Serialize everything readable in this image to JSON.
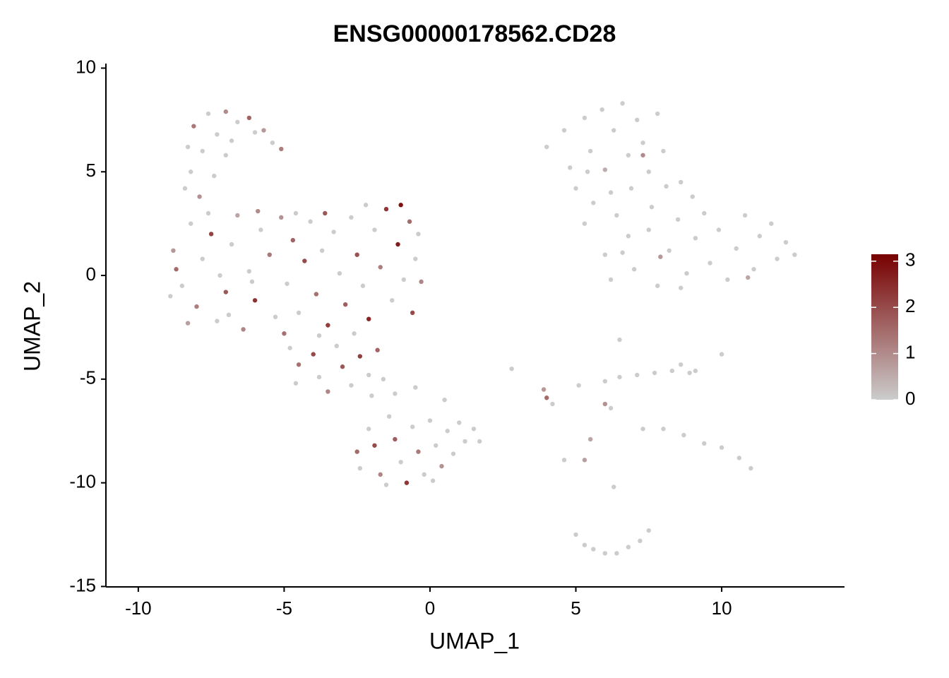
{
  "chart_data": {
    "type": "scatter",
    "title": "ENSG00000178562.CD28",
    "xlabel": "UMAP_1",
    "ylabel": "UMAP_2",
    "xlim": [
      -11.11,
      14.21
    ],
    "ylim": [
      -15.02,
      10.22
    ],
    "xticks": [
      -10,
      -5,
      0,
      5,
      10
    ],
    "yticks": [
      10,
      5,
      0,
      -5,
      -10,
      -15
    ],
    "color_low": "#cccccc",
    "color_high": "#780000",
    "color_lim": [
      0,
      3.15
    ],
    "color_ticks": [
      3,
      2,
      1,
      0
    ],
    "x": [
      -8.8,
      -8.5,
      -8.7,
      -8.2,
      -8.0,
      -7.8,
      -7.5,
      -7.3,
      -7.0,
      -6.8,
      -6.6,
      -6.4,
      -6.2,
      -6.0,
      -5.8,
      -5.5,
      -5.3,
      -5.1,
      -4.9,
      -4.7,
      -4.5,
      -4.3,
      -4.1,
      -3.9,
      -3.7,
      -3.5,
      -3.3,
      -3.1,
      -2.9,
      -2.7,
      -2.5,
      -2.3,
      -2.1,
      -1.9,
      -1.7,
      -1.5,
      -1.3,
      -1.1,
      -0.9,
      -0.7,
      -0.5,
      -0.6,
      -8.9,
      -8.3,
      -7.6,
      -6.9,
      -5.9,
      -4.6,
      -3.6,
      -2.2,
      -1.0,
      -0.4,
      -0.3,
      -7.2,
      -6.1,
      -5.0,
      -3.8,
      -2.6,
      -8.4,
      -8.2,
      -7.9,
      -8.3,
      -8.1,
      -7.6,
      -7.3,
      -7.0,
      -6.6,
      -6.2,
      -6.0,
      -5.7,
      -5.4,
      -5.1,
      -7.8,
      -6.8,
      -7.4,
      -7.0,
      -4.8,
      -4.5,
      -4.6,
      -4.0,
      -3.8,
      -3.5,
      -3.2,
      -3.0,
      -2.7,
      -2.4,
      -2.1,
      -1.8,
      -1.6,
      -2.0,
      -1.2,
      -0.5,
      0.5,
      -2.5,
      -2.4,
      -2.1,
      -1.9,
      -1.7,
      -1.4,
      -1.2,
      -1.0,
      -0.8,
      -0.6,
      -0.4,
      -0.2,
      0.0,
      0.2,
      0.4,
      0.6,
      0.8,
      1.0,
      1.2,
      1.5,
      1.7,
      -1.5,
      0.1,
      4.0,
      4.6,
      4.8,
      5.0,
      5.3,
      5.5,
      5.6,
      5.9,
      6.0,
      6.3,
      6.4,
      6.6,
      6.8,
      6.9,
      7.1,
      7.3,
      7.5,
      7.6,
      7.8,
      8.0,
      8.1,
      7.3,
      6.2,
      5.4,
      5.3,
      6.0,
      6.2,
      6.8,
      7.0,
      7.5,
      7.8,
      8.2,
      8.5,
      8.8,
      9.1,
      9.4,
      9.6,
      9.9,
      10.2,
      10.5,
      10.8,
      11.1,
      11.3,
      11.7,
      11.9,
      12.2,
      12.5,
      8.6,
      9.0,
      7.9,
      10.9,
      6.6,
      8.6,
      4.0,
      3.9,
      4.2,
      2.8,
      5.1,
      6.0,
      6.5,
      7.1,
      7.7,
      8.3,
      8.6,
      8.9,
      9.1,
      5.5,
      6.0,
      6.2,
      6.5,
      10.0,
      7.3,
      8.0,
      8.7,
      9.4,
      10.0,
      10.6,
      11.0,
      5.3,
      4.6,
      5.0,
      5.3,
      5.6,
      6.0,
      6.4,
      6.8,
      7.2,
      7.5,
      6.3
    ],
    "y": [
      1.2,
      -0.5,
      0.3,
      2.5,
      -1.5,
      0.8,
      2.0,
      -2.2,
      -0.8,
      1.5,
      2.9,
      -2.6,
      0.2,
      -1.2,
      2.2,
      1.0,
      -2.0,
      2.8,
      -0.4,
      1.7,
      -1.8,
      0.7,
      2.6,
      -0.9,
      1.2,
      -2.4,
      2.1,
      0.1,
      -1.4,
      2.8,
      1.0,
      -0.5,
      -2.1,
      2.2,
      0.4,
      3.2,
      -1.2,
      1.5,
      -0.2,
      2.6,
      0.8,
      -1.8,
      -1.0,
      -2.3,
      3.0,
      -1.9,
      3.1,
      3.0,
      3.0,
      3.4,
      3.4,
      2.0,
      -0.3,
      0.0,
      -0.3,
      -2.8,
      -2.9,
      -2.8,
      4.2,
      5.0,
      3.8,
      6.2,
      7.2,
      7.8,
      6.8,
      7.9,
      7.4,
      7.6,
      6.9,
      7.0,
      6.4,
      6.1,
      6.0,
      6.5,
      4.8,
      5.8,
      -3.5,
      -4.3,
      -5.2,
      -3.8,
      -4.9,
      -5.6,
      -3.4,
      -4.4,
      -5.3,
      -3.9,
      -4.8,
      -3.6,
      -5.0,
      -5.8,
      -5.7,
      -5.4,
      -6.0,
      -8.5,
      -9.3,
      -7.4,
      -8.2,
      -9.6,
      -6.8,
      -7.9,
      -9.0,
      -10.0,
      -7.3,
      -8.5,
      -9.6,
      -7.0,
      -8.2,
      -9.2,
      -7.5,
      -8.6,
      -7.1,
      -8.0,
      -7.4,
      -8.0,
      -10.1,
      -9.9,
      6.2,
      7.0,
      5.2,
      4.2,
      7.6,
      6.0,
      3.5,
      8.0,
      5.1,
      7.0,
      2.9,
      8.3,
      5.8,
      4.2,
      7.5,
      6.4,
      5.0,
      3.3,
      7.8,
      6.0,
      4.3,
      5.8,
      4.0,
      5.0,
      2.5,
      1.0,
      -0.2,
      1.9,
      0.3,
      2.2,
      -0.5,
      1.2,
      2.7,
      0.1,
      1.8,
      3.0,
      0.6,
      2.2,
      -0.2,
      1.3,
      2.9,
      0.3,
      1.9,
      2.5,
      0.8,
      1.6,
      1.0,
      4.5,
      3.8,
      0.9,
      -0.1,
      1.1,
      -0.6,
      -5.9,
      -5.5,
      -6.2,
      -4.5,
      -5.3,
      -5.1,
      -4.9,
      -4.8,
      -4.7,
      -4.6,
      -4.3,
      -4.7,
      -4.6,
      -7.9,
      -6.2,
      -6.4,
      -3.1,
      -3.8,
      -7.4,
      -7.4,
      -7.7,
      -8.1,
      -8.3,
      -8.8,
      -9.3,
      -8.9,
      -8.9,
      -12.5,
      -13.0,
      -13.2,
      -13.4,
      -13.4,
      -13.1,
      -12.8,
      -12.3,
      -10.2
    ],
    "values": [
      0.8,
      0,
      1.5,
      0,
      1.2,
      0,
      2.1,
      0,
      1.8,
      0,
      0.6,
      1.1,
      0,
      2.4,
      0,
      1.3,
      0,
      0.9,
      0,
      1.6,
      0,
      2.0,
      0,
      1.4,
      0,
      2.2,
      0,
      0,
      1.7,
      0,
      1.9,
      0,
      2.6,
      0,
      1.2,
      2.3,
      0,
      2.7,
      0,
      1.5,
      0,
      2.0,
      0,
      0.7,
      0,
      0,
      1.0,
      0,
      1.8,
      0,
      2.9,
      0,
      1.1,
      0,
      0,
      1.4,
      0,
      0,
      0,
      0,
      0.9,
      0,
      1.3,
      0,
      0,
      1.0,
      0,
      1.6,
      0,
      0.8,
      0,
      1.2,
      0,
      0,
      0,
      0,
      0,
      1.4,
      0,
      2.0,
      0,
      1.1,
      0,
      1.8,
      0,
      2.2,
      0,
      1.6,
      0,
      0,
      0,
      0,
      0,
      1.5,
      0,
      0,
      2.0,
      1.1,
      0,
      1.7,
      0,
      2.3,
      0,
      1.3,
      0,
      0,
      0,
      0.9,
      0,
      0,
      0,
      0,
      0,
      0,
      0,
      0,
      0,
      0,
      0,
      0,
      0,
      0,
      0,
      0,
      0.5,
      0,
      0,
      0,
      0,
      0,
      0,
      0,
      0,
      0,
      0,
      0,
      0,
      1.0,
      0,
      0,
      0,
      0,
      0,
      0,
      0,
      0,
      0,
      0,
      0,
      0,
      0,
      0,
      0,
      0,
      0,
      0,
      0,
      0,
      0,
      0,
      0,
      0,
      0,
      0,
      0,
      0.8,
      0.6,
      0,
      0,
      1.5,
      0.8,
      0,
      0,
      0,
      0,
      0,
      0,
      0,
      0,
      0,
      0,
      0,
      0.6,
      0.9,
      0,
      0,
      0,
      0,
      0,
      0,
      0,
      0,
      0,
      0,
      0.7,
      0,
      0,
      0,
      0,
      0,
      0,
      0,
      0,
      0,
      0
    ]
  }
}
